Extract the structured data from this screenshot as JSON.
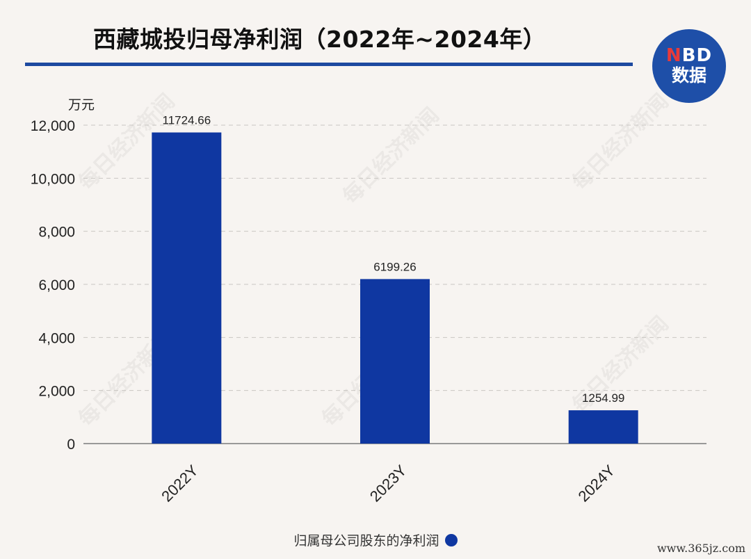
{
  "title": "西藏城投归母净利润（2022年~2024年）",
  "logo": {
    "line1_n": "N",
    "line1_rest": "BD",
    "line2": "数据"
  },
  "watermark_text": "每日经济新闻",
  "footer_site": "www.365jz.com",
  "colors": {
    "bar": "#0f37a1",
    "accent": "#1d4aa0",
    "background": "#f7f4f1"
  },
  "chart_data": {
    "type": "bar",
    "title": "西藏城投归母净利润（2022年~2024年）",
    "unit_label": "万元",
    "categories": [
      "2022Y",
      "2023Y",
      "2024Y"
    ],
    "series": [
      {
        "name": "归属母公司股东的净利润",
        "values": [
          11724.66,
          6199.26,
          1254.99
        ]
      }
    ],
    "data_labels": [
      "11724.66",
      "6199.26",
      "1254.99"
    ],
    "ylim": [
      0,
      12000
    ],
    "yticks": [
      0,
      2000,
      4000,
      6000,
      8000,
      10000,
      12000
    ],
    "ytick_labels": [
      "0",
      "2,000",
      "4,000",
      "6,000",
      "8,000",
      "10,000",
      "12,000"
    ],
    "grid": true,
    "legend_position": "bottom"
  }
}
